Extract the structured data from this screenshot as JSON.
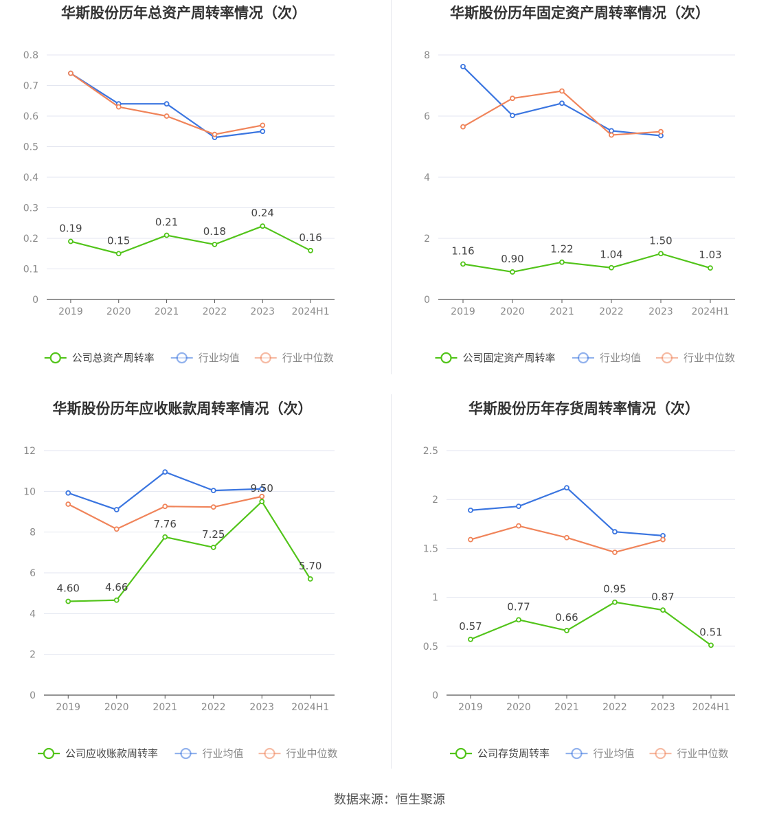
{
  "colors": {
    "company": "#52c41a",
    "industry_avg": "#3a75e0",
    "industry_median": "#f0845a",
    "grid": "#e3e6f0",
    "axis": "#555555",
    "tick_text": "#8a8a8a",
    "title_text": "#333333",
    "label_text": "#444444"
  },
  "footer": {
    "source": "数据来源：恒生聚源"
  },
  "chart_data": [
    {
      "type": "line",
      "title": "华斯股份历年总资产周转率情况（次）",
      "categories": [
        "2019",
        "2020",
        "2021",
        "2022",
        "2023",
        "2024H1"
      ],
      "ylim": [
        0,
        0.8
      ],
      "yticks": [
        "0",
        "0.1",
        "0.2",
        "0.3",
        "0.4",
        "0.5",
        "0.6",
        "0.7",
        "0.8"
      ],
      "ytick_values": [
        0,
        0.1,
        0.2,
        0.3,
        0.4,
        0.5,
        0.6,
        0.7,
        0.8
      ],
      "grid": true,
      "legend_position": "bottom",
      "series": [
        {
          "name": "公司总资产周转率",
          "color": "#52c41a",
          "values": [
            0.19,
            0.15,
            0.21,
            0.18,
            0.24,
            0.16
          ],
          "labels": [
            "0.19",
            "0.15",
            "0.21",
            "0.18",
            "0.24",
            "0.16"
          ]
        },
        {
          "name": "行业均值",
          "color": "#3a75e0",
          "values": [
            0.74,
            0.64,
            0.64,
            0.53,
            0.55,
            null
          ]
        },
        {
          "name": "行业中位数",
          "color": "#f0845a",
          "values": [
            0.74,
            0.63,
            0.6,
            0.54,
            0.57,
            null
          ]
        }
      ]
    },
    {
      "type": "line",
      "title": "华斯股份历年固定资产周转率情况（次）",
      "categories": [
        "2019",
        "2020",
        "2021",
        "2022",
        "2023",
        "2024H1"
      ],
      "ylim": [
        0,
        8
      ],
      "yticks": [
        "0",
        "2",
        "4",
        "6",
        "8"
      ],
      "ytick_values": [
        0,
        2,
        4,
        6,
        8
      ],
      "grid": true,
      "legend_position": "bottom",
      "series": [
        {
          "name": "公司固定资产周转率",
          "color": "#52c41a",
          "values": [
            1.16,
            0.9,
            1.22,
            1.04,
            1.5,
            1.03
          ],
          "labels": [
            "1.16",
            "0.90",
            "1.22",
            "1.04",
            "1.50",
            "1.03"
          ]
        },
        {
          "name": "行业均值",
          "color": "#3a75e0",
          "values": [
            7.62,
            6.02,
            6.42,
            5.52,
            5.36,
            null
          ]
        },
        {
          "name": "行业中位数",
          "color": "#f0845a",
          "values": [
            5.65,
            6.58,
            6.82,
            5.38,
            5.49,
            null
          ]
        }
      ]
    },
    {
      "type": "line",
      "title": "华斯股份历年应收账款周转率情况（次）",
      "categories": [
        "2019",
        "2020",
        "2021",
        "2022",
        "2023",
        "2024H1"
      ],
      "ylim": [
        0,
        12
      ],
      "yticks": [
        "0",
        "2",
        "4",
        "6",
        "8",
        "10",
        "12"
      ],
      "ytick_values": [
        0,
        2,
        4,
        6,
        8,
        10,
        12
      ],
      "grid": true,
      "legend_position": "bottom",
      "series": [
        {
          "name": "公司应收账款周转率",
          "color": "#52c41a",
          "values": [
            4.6,
            4.66,
            7.76,
            7.25,
            9.5,
            5.7
          ],
          "labels": [
            "4.60",
            "4.66",
            "7.76",
            "7.25",
            "9.50",
            "5.70"
          ]
        },
        {
          "name": "行业均值",
          "color": "#3a75e0",
          "values": [
            9.92,
            9.1,
            10.95,
            10.04,
            10.12,
            null
          ]
        },
        {
          "name": "行业中位数",
          "color": "#f0845a",
          "values": [
            9.37,
            8.15,
            9.26,
            9.23,
            9.75,
            null
          ]
        }
      ]
    },
    {
      "type": "line",
      "title": "华斯股份历年存货周转率情况（次）",
      "categories": [
        "2019",
        "2020",
        "2021",
        "2022",
        "2023",
        "2024H1"
      ],
      "ylim": [
        0,
        2.5
      ],
      "yticks": [
        "0",
        "0.5",
        "1",
        "1.5",
        "2",
        "2.5"
      ],
      "ytick_values": [
        0,
        0.5,
        1,
        1.5,
        2,
        2.5
      ],
      "grid": true,
      "legend_position": "bottom",
      "series": [
        {
          "name": "公司存货周转率",
          "color": "#52c41a",
          "values": [
            0.57,
            0.77,
            0.66,
            0.95,
            0.87,
            0.51
          ],
          "labels": [
            "0.57",
            "0.77",
            "0.66",
            "0.95",
            "0.87",
            "0.51"
          ]
        },
        {
          "name": "行业均值",
          "color": "#3a75e0",
          "values": [
            1.89,
            1.93,
            2.12,
            1.67,
            1.63,
            null
          ]
        },
        {
          "name": "行业中位数",
          "color": "#f0845a",
          "values": [
            1.59,
            1.73,
            1.61,
            1.46,
            1.59,
            null
          ]
        }
      ]
    }
  ]
}
